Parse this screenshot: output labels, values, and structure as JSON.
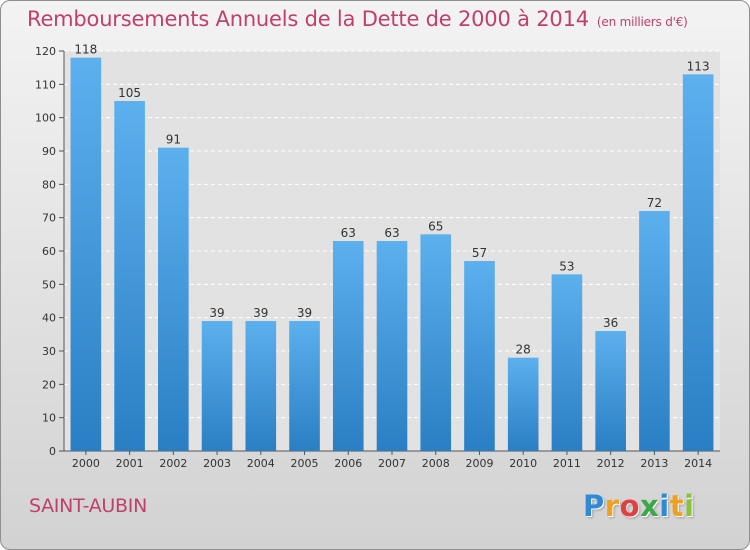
{
  "chart_data": {
    "type": "bar",
    "title": "Remboursements Annuels de la Dette de 2000 à 2014",
    "unit": "(en milliers d'€)",
    "categories": [
      "2000",
      "2001",
      "2002",
      "2003",
      "2004",
      "2005",
      "2006",
      "2007",
      "2008",
      "2009",
      "2010",
      "2011",
      "2012",
      "2013",
      "2014"
    ],
    "values": [
      118,
      105,
      91,
      39,
      39,
      39,
      63,
      63,
      65,
      57,
      28,
      53,
      36,
      72,
      113
    ],
    "ylim": [
      0,
      120
    ],
    "yticks": [
      0,
      10,
      20,
      30,
      40,
      50,
      60,
      70,
      80,
      90,
      100,
      110,
      120
    ],
    "grid": true,
    "bar_color": "#4a9fdf",
    "title_color": "#c0406c"
  },
  "commune": "SAINT-AUBIN",
  "logo": {
    "letters": [
      "P",
      "r",
      "o",
      "x",
      "i",
      "t",
      "i"
    ],
    "colors": [
      "#2e8ad6",
      "#f0a020",
      "#e04040",
      "#3aa84a",
      "#2e8ad6",
      "#f0a020",
      "#8ac23a"
    ]
  }
}
